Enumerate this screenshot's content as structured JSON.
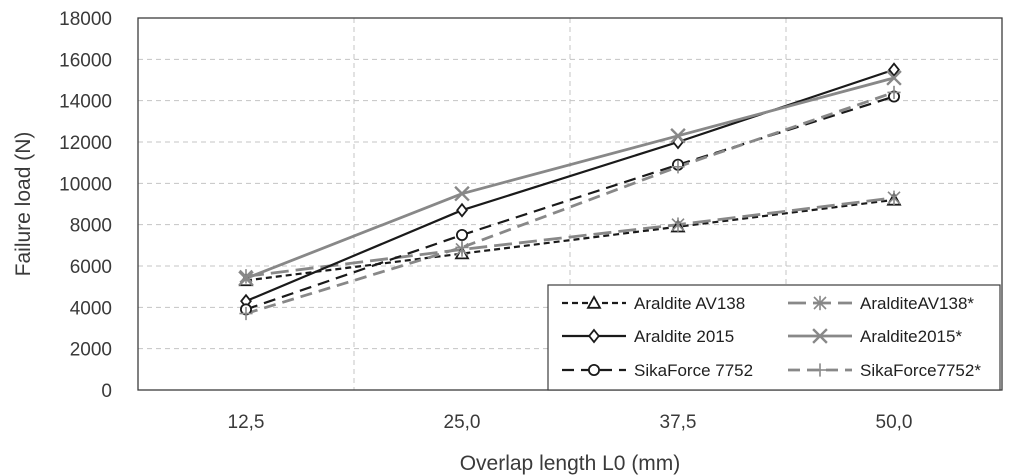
{
  "chart_data": {
    "type": "line",
    "categories": [
      "12,5",
      "25,0",
      "37,5",
      "50,0"
    ],
    "xlabel": "Overlap length L0 (mm)",
    "ylabel": "Failure load (N)",
    "ylim": [
      0,
      18000
    ],
    "yticks": [
      0,
      2000,
      4000,
      6000,
      8000,
      10000,
      12000,
      14000,
      16000,
      18000
    ],
    "grid": true,
    "legend_position": "bottom-right",
    "series": [
      {
        "name": "Araldite AV138",
        "values": [
          5300,
          6600,
          7900,
          9200
        ],
        "color": "#1a1a1a",
        "dash": "short-dash",
        "marker": "triangle"
      },
      {
        "name": "AralditeAV138*",
        "values": [
          5500,
          6800,
          8000,
          9300
        ],
        "color": "#888888",
        "dash": "long-dash",
        "marker": "asterisk"
      },
      {
        "name": "Araldite 2015",
        "values": [
          4300,
          8700,
          12000,
          15500
        ],
        "color": "#1a1a1a",
        "dash": "solid",
        "marker": "diamond"
      },
      {
        "name": "Araldite2015*",
        "values": [
          5400,
          9500,
          12300,
          15100
        ],
        "color": "#888888",
        "dash": "solid",
        "marker": "x"
      },
      {
        "name": "SikaForce 7752",
        "values": [
          3900,
          7500,
          10900,
          14200
        ],
        "color": "#1a1a1a",
        "dash": "dash",
        "marker": "circle"
      },
      {
        "name": "SikaForce7752*",
        "values": [
          3700,
          6900,
          10800,
          14400
        ],
        "color": "#888888",
        "dash": "dash",
        "marker": "plus"
      }
    ]
  }
}
